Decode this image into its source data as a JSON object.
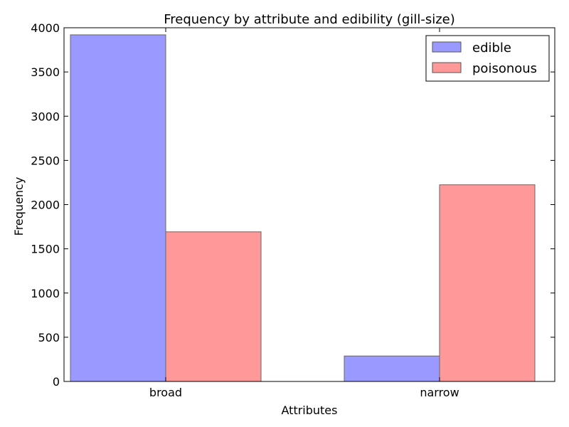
{
  "chart_data": {
    "type": "bar",
    "title": "Frequency by attribute and edibility (gill-size)",
    "xlabel": "Attributes",
    "ylabel": "Frequency",
    "categories": [
      "broad",
      "narrow"
    ],
    "series": [
      {
        "name": "edible",
        "values": [
          3920,
          288
        ],
        "color": "#9999ff"
      },
      {
        "name": "poisonous",
        "values": [
          1692,
          2224
        ],
        "color": "#ff9999"
      }
    ],
    "ylim": [
      0,
      4000
    ],
    "yticks": [
      0,
      500,
      1000,
      1500,
      2000,
      2500,
      3000,
      3500,
      4000
    ],
    "grid": false,
    "legend_position": "top-right"
  }
}
